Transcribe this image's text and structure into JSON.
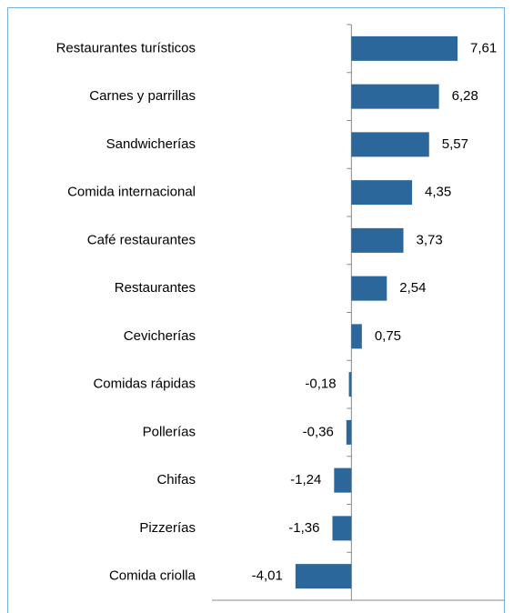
{
  "chart_data": {
    "type": "bar",
    "orientation": "horizontal",
    "categories": [
      "Restaurantes turísticos",
      "Carnes y parrillas",
      "Sandwicherías",
      "Comida internacional",
      "Café restaurantes",
      "Restaurantes",
      "Cevicherías",
      "Comidas rápidas",
      "Pollerías",
      "Chifas",
      "Pizzerías",
      "Comida criolla"
    ],
    "values": [
      7.61,
      6.28,
      5.57,
      4.35,
      3.73,
      2.54,
      0.75,
      -0.18,
      -0.36,
      -1.24,
      -1.36,
      -4.01
    ],
    "value_labels": [
      "7,61",
      "6,28",
      "5,57",
      "4,35",
      "3,73",
      "2,54",
      "0,75",
      "-0,18",
      "-0,36",
      "-1,24",
      "-1,36",
      "-4,01"
    ],
    "color": "#2b679b",
    "xlim": [
      -10,
      11
    ]
  }
}
